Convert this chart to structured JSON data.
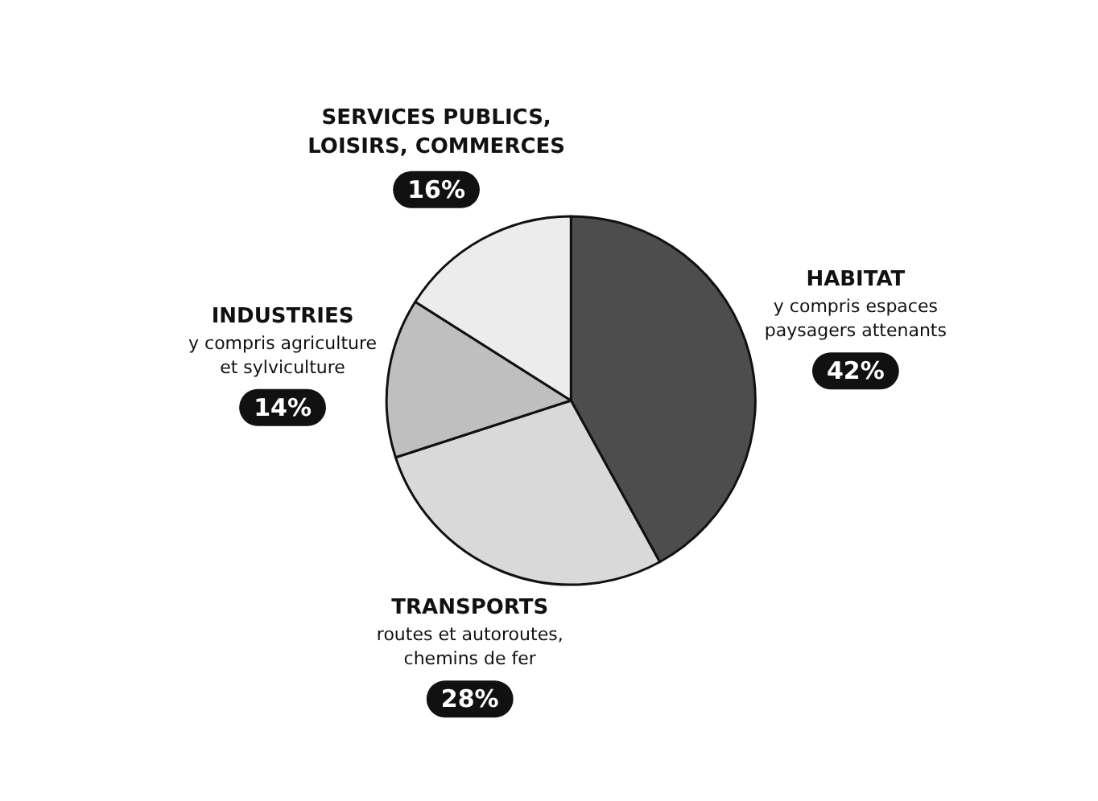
{
  "chart_data": {
    "type": "pie",
    "categories": [
      "HABITAT",
      "TRANSPORTS",
      "INDUSTRIES",
      "SERVICES PUBLICS, LOISIRS, COMMERCES"
    ],
    "values": [
      42,
      28,
      14,
      16
    ],
    "value_labels": [
      "42%",
      "28%",
      "14%",
      "16%"
    ],
    "colors": [
      "#4d4d4d",
      "#d9d9d9",
      "#bfbfbf",
      "#ececec"
    ],
    "annotations": [
      {
        "text": "y compris espaces paysagers attenants",
        "x": "HABITAT"
      },
      {
        "text": "routes et autoroutes, chemins de fer",
        "x": "TRANSPORTS"
      },
      {
        "text": "y compris agriculture et sylviculture",
        "x": "INDUSTRIES"
      }
    ],
    "legend": false
  }
}
